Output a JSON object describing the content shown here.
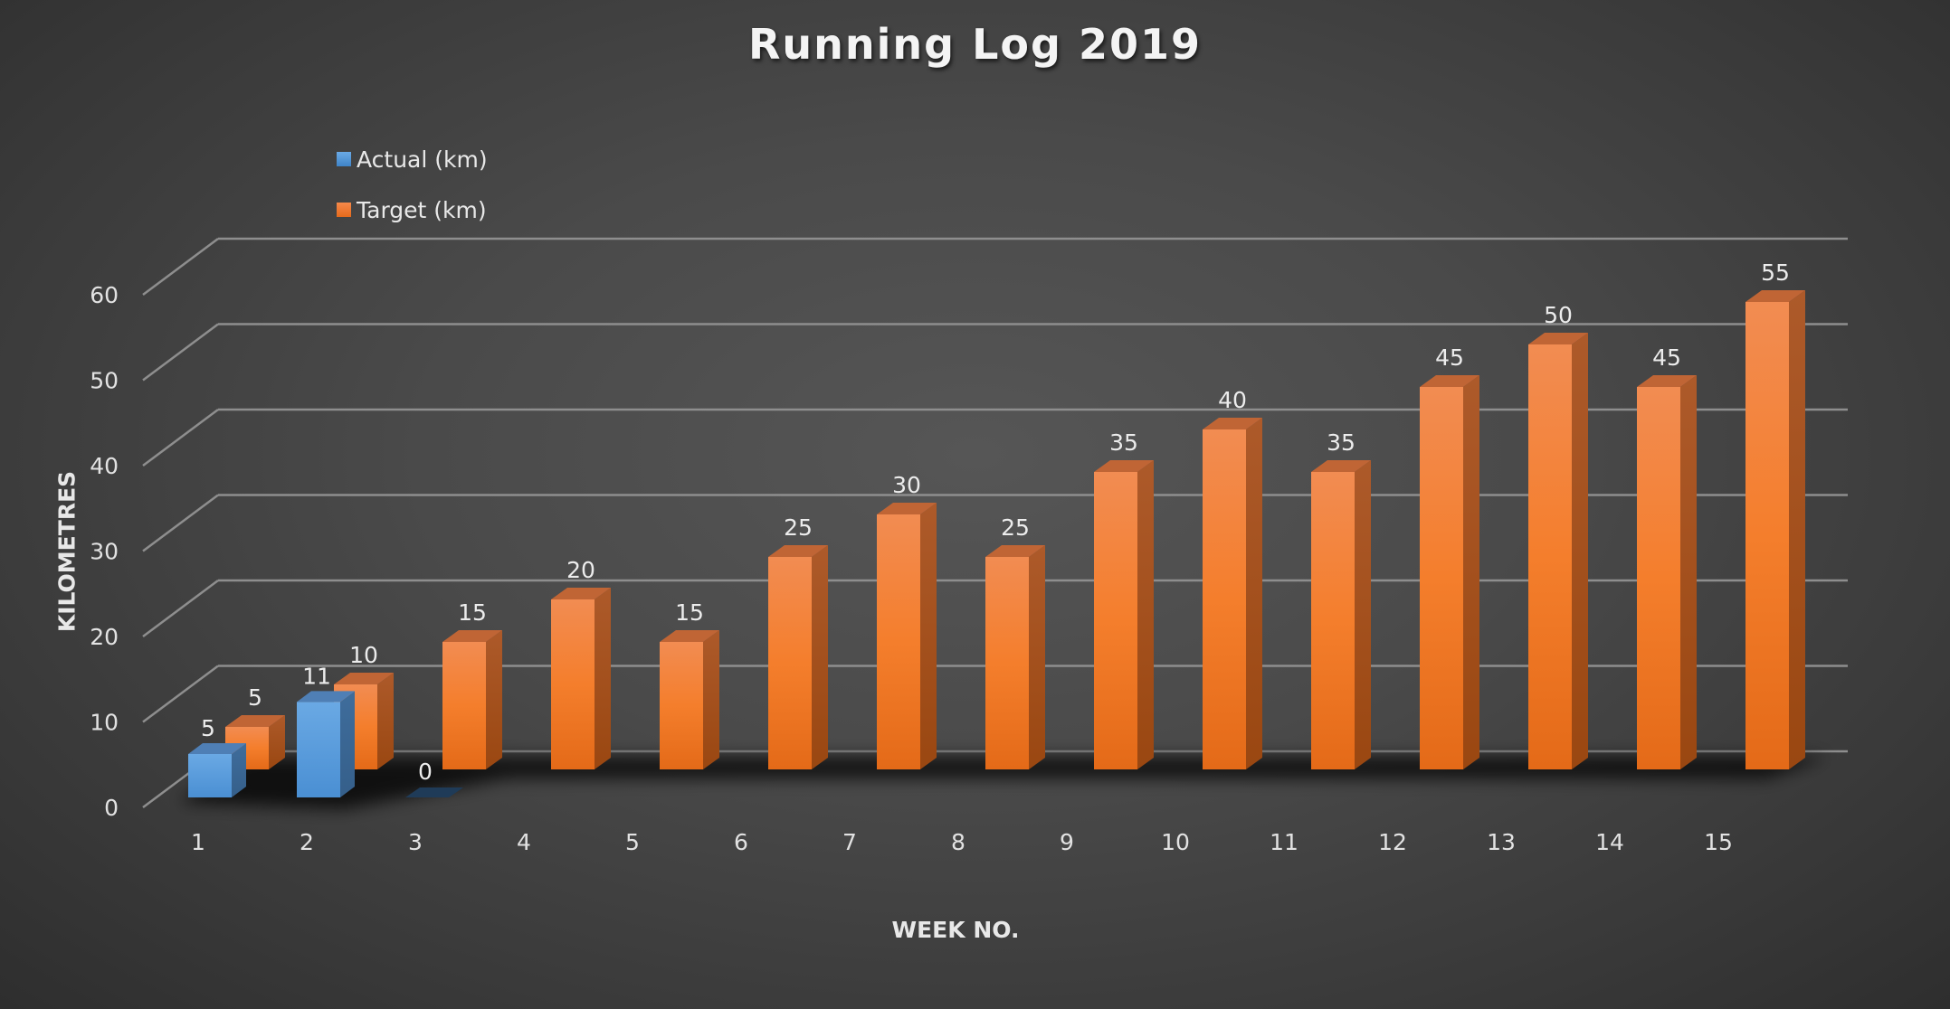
{
  "chart_data": {
    "type": "bar",
    "style": "3d-clustered-column",
    "title": "Running Log 2019",
    "xlabel": "WEEK NO.",
    "ylabel": "KILOMETRES",
    "ylim": [
      0,
      60
    ],
    "yticks": [
      0,
      10,
      20,
      30,
      40,
      50,
      60
    ],
    "grid": true,
    "legend_position": "top-left",
    "categories": [
      "1",
      "2",
      "3",
      "4",
      "5",
      "6",
      "7",
      "8",
      "9",
      "10",
      "11",
      "12",
      "13",
      "14",
      "15"
    ],
    "series": [
      {
        "name": "Actual (km)",
        "color": "#5B9BD5",
        "values": [
          5,
          11,
          0,
          null,
          null,
          null,
          null,
          null,
          null,
          null,
          null,
          null,
          null,
          null,
          null
        ]
      },
      {
        "name": "Target (km)",
        "color": "#ED7D31",
        "values": [
          5,
          10,
          15,
          20,
          15,
          25,
          30,
          25,
          35,
          40,
          35,
          45,
          50,
          45,
          55
        ]
      }
    ]
  }
}
